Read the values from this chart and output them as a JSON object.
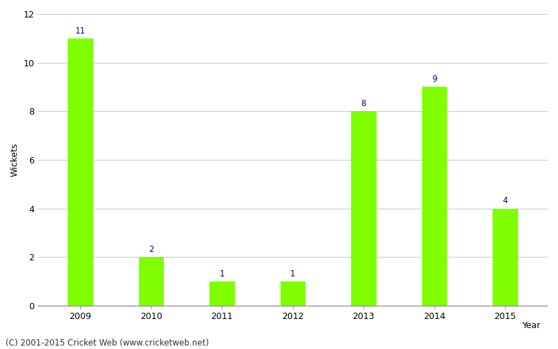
{
  "categories": [
    "2009",
    "2010",
    "2011",
    "2012",
    "2013",
    "2014",
    "2015"
  ],
  "values": [
    11,
    2,
    1,
    1,
    8,
    9,
    4
  ],
  "bar_color": "#7fff00",
  "bar_edgecolor": "#7fff00",
  "label_color": "#00008b",
  "xlabel": "Year",
  "ylabel": "Wickets",
  "ylim": [
    0,
    12
  ],
  "yticks": [
    0,
    2,
    4,
    6,
    8,
    10,
    12
  ],
  "background_color": "#ffffff",
  "grid_color": "#cccccc",
  "footer_text": "(C) 2001-2015 Cricket Web (www.cricketweb.net)",
  "label_fontsize": 8.5,
  "axis_label_fontsize": 9,
  "tick_fontsize": 9,
  "footer_fontsize": 8.5,
  "bar_width": 0.35
}
